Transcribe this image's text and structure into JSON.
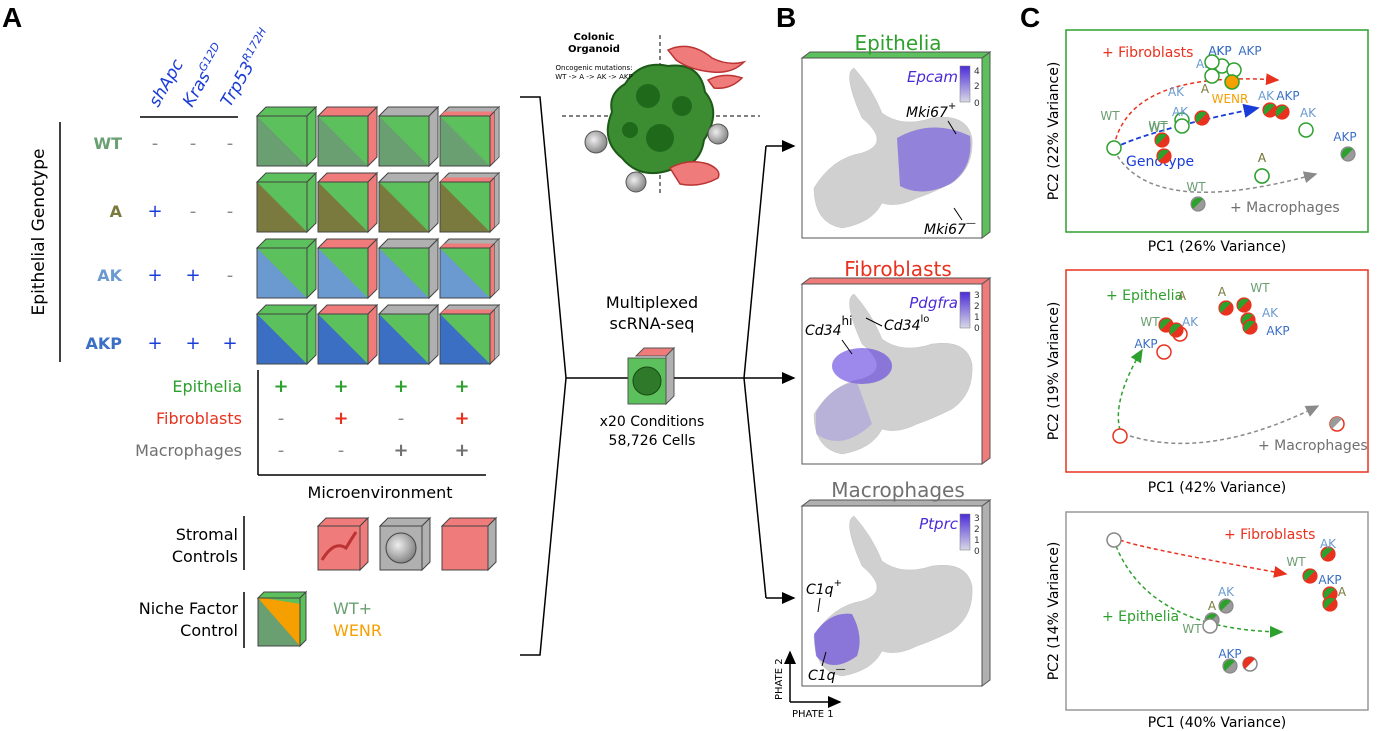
{
  "panels": {
    "a": "A",
    "b": "B",
    "c": "C"
  },
  "colors": {
    "epithelia": "#2ea02e",
    "fibroblasts": "#e8321f",
    "macrophages": "#707070",
    "wt": "#6a9f72",
    "a": "#7a7a3e",
    "ak": "#6a9ad0",
    "akp": "#3a6fc4",
    "blue_plus": "#1a3cd8",
    "wenr": "#f5a000",
    "cube_green": "#5cc05c",
    "cube_red": "#ef7b7b",
    "cube_gray": "#b0b0b0"
  },
  "panel_a": {
    "genes": [
      {
        "base": "shApc",
        "sup": ""
      },
      {
        "base": "Kras",
        "sup": "G12D"
      },
      {
        "base": "Trp53",
        "sup": "R172H"
      }
    ],
    "ylabel": "Epithelial Genotype",
    "genotypes": [
      {
        "name": "WT",
        "marks": [
          "-",
          "-",
          "-"
        ]
      },
      {
        "name": "A",
        "marks": [
          "+",
          "-",
          "-"
        ]
      },
      {
        "name": "AK",
        "marks": [
          "+",
          "+",
          "-"
        ]
      },
      {
        "name": "AKP",
        "marks": [
          "+",
          "+",
          "+"
        ]
      }
    ],
    "micro_rows": [
      {
        "name": "Epithelia",
        "marks": [
          "+",
          "+",
          "+",
          "+"
        ]
      },
      {
        "name": "Fibroblasts",
        "marks": [
          "-",
          "+",
          "-",
          "+"
        ]
      },
      {
        "name": "Macrophages",
        "marks": [
          "-",
          "-",
          "+",
          "+"
        ]
      }
    ],
    "micro_label": "Microenvironment",
    "stromal_label": [
      "Stromal",
      "Controls"
    ],
    "niche_label": [
      "Niche Factor",
      "Control"
    ],
    "niche_wt": "WT+",
    "niche_wenr": "WENR"
  },
  "organoid": {
    "title": [
      "Colonic",
      "Organoid"
    ],
    "subtitle": [
      "Oncogenic mutations:",
      "WT -> A -> AK -> AKP"
    ]
  },
  "sequencing": {
    "title": [
      "Multiplexed",
      "scRNA-seq"
    ],
    "stats": [
      "x20 Conditions",
      "58,726 Cells"
    ]
  },
  "panel_b": {
    "plots": [
      {
        "title": "Epithelia",
        "gene": "Epcam",
        "scale": [
          "4",
          "2",
          "0"
        ],
        "annotations": [
          {
            "base": "Mki67",
            "sup": "+"
          },
          {
            "base": "Mki67",
            "sup": "—"
          }
        ]
      },
      {
        "title": "Fibroblasts",
        "gene": "Pdgfra",
        "scale": [
          "3",
          "2",
          "1",
          "0"
        ],
        "annotations": [
          {
            "base": "Cd34",
            "sup": "hi"
          },
          {
            "base": "Cd34",
            "sup": "lo"
          }
        ]
      },
      {
        "title": "Macrophages",
        "gene": "Ptprc",
        "scale": [
          "3",
          "2",
          "1",
          "0"
        ],
        "annotations": [
          {
            "base": "C1q",
            "sup": "+"
          },
          {
            "base": "C1q",
            "sup": "—"
          }
        ]
      }
    ],
    "axis_x": "PHATE 1",
    "axis_y": "PHATE 2"
  },
  "panel_c": {
    "plots": [
      {
        "xlabel": "PC1 (26% Variance)",
        "ylabel": "PC2 (22% Variance)",
        "arrows": [
          "+ Fibroblasts",
          "Genotype",
          "+ Macrophages"
        ],
        "points": [
          "WT",
          "A",
          "WT",
          "AK",
          "AKP",
          "AK",
          "AKP",
          "WENR",
          "AK",
          "AKP",
          "AK",
          "AKP",
          "WT",
          "A",
          "AK",
          "AKP",
          "A",
          "WT"
        ]
      },
      {
        "xlabel": "PC1 (42% Variance)",
        "ylabel": "PC2 (19% Variance)",
        "arrows": [
          "+ Epithelia",
          "+ Macrophages"
        ],
        "points": [
          "WT",
          "A",
          "AK",
          "AKP",
          "A",
          "WT",
          "AK",
          "AKP"
        ]
      },
      {
        "xlabel": "PC1 (40% Variance)",
        "ylabel": "PC2 (14% Variance)",
        "arrows": [
          "+ Fibroblasts",
          "+ Epithelia"
        ],
        "points": [
          "AK",
          "WT",
          "AKP",
          "A",
          "AK",
          "A",
          "WT",
          "AKP"
        ]
      }
    ]
  }
}
